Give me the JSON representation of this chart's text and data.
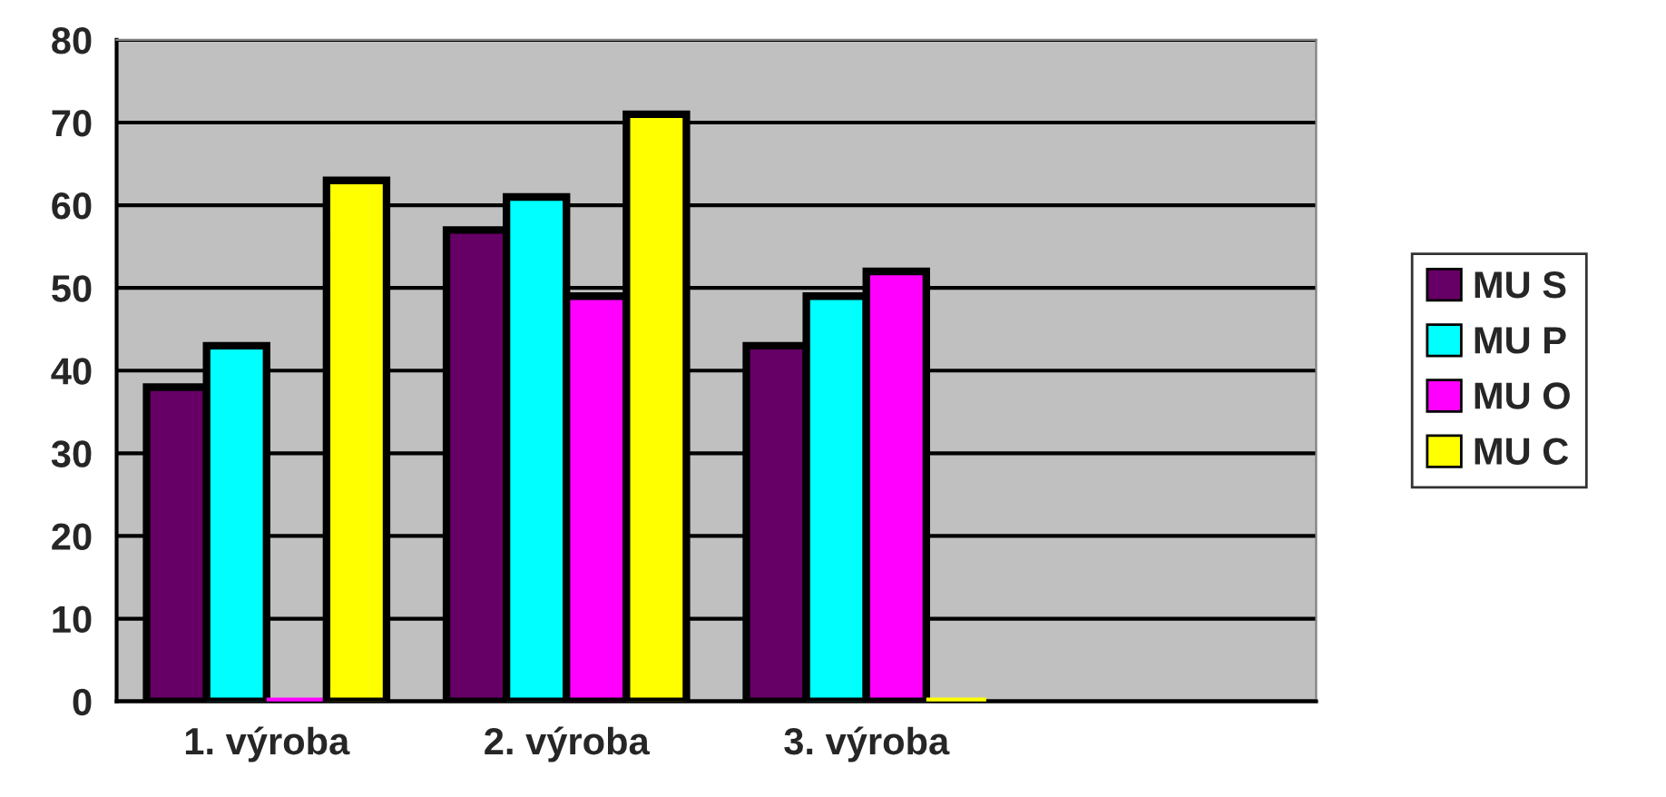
{
  "chart_data": {
    "type": "bar",
    "categories": [
      "1. výroba",
      "2. výroba",
      "3. výroba",
      null
    ],
    "series": [
      {
        "name": "MU S",
        "color": "#660066",
        "values": [
          38,
          57,
          43,
          null
        ]
      },
      {
        "name": "MU P",
        "color": "#00ffff",
        "values": [
          43,
          61,
          49,
          null
        ]
      },
      {
        "name": "MU O",
        "color": "#ff00ff",
        "values": [
          0,
          49,
          52,
          null
        ]
      },
      {
        "name": "MU C",
        "color": "#ffff00",
        "values": [
          63,
          71,
          0,
          null
        ]
      }
    ],
    "ylim": [
      0,
      80
    ],
    "yticks": [
      0,
      10,
      20,
      30,
      40,
      50,
      60,
      70,
      80
    ],
    "grid": "y",
    "legend": "right"
  }
}
